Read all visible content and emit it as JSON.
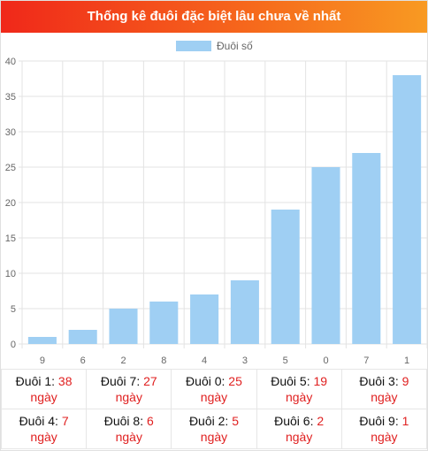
{
  "header": {
    "title": "Thống kê đuôi đặc biệt lâu chưa về nhất"
  },
  "colors": {
    "bar": "#9fcff3",
    "grid": "#e3e3e3",
    "axis": "#666666",
    "red": "#e02020"
  },
  "chart_data": {
    "type": "bar",
    "categories": [
      "9",
      "6",
      "2",
      "8",
      "4",
      "3",
      "5",
      "0",
      "7",
      "1"
    ],
    "series": [
      {
        "name": "Đuôi số",
        "values": [
          1,
          2,
          5,
          6,
          7,
          9,
          19,
          25,
          27,
          38
        ]
      }
    ],
    "ylim": [
      0,
      40
    ],
    "yticks": [
      0,
      5,
      10,
      15,
      20,
      25,
      30,
      35,
      40
    ],
    "grid": true,
    "legend": "top-center",
    "title": "",
    "xlabel": "",
    "ylabel": ""
  },
  "stats": {
    "unit": "ngày",
    "rows": [
      [
        {
          "label": "Đuôi 1:",
          "value": "38"
        },
        {
          "label": "Đuôi 7:",
          "value": "27"
        },
        {
          "label": "Đuôi 0:",
          "value": "25"
        },
        {
          "label": "Đuôi 5:",
          "value": "19"
        },
        {
          "label": "Đuôi 3:",
          "value": "9"
        }
      ],
      [
        {
          "label": "Đuôi 4:",
          "value": "7"
        },
        {
          "label": "Đuôi 8:",
          "value": "6"
        },
        {
          "label": "Đuôi 2:",
          "value": "5"
        },
        {
          "label": "Đuôi 6:",
          "value": "2"
        },
        {
          "label": "Đuôi 9:",
          "value": "1"
        }
      ]
    ]
  }
}
